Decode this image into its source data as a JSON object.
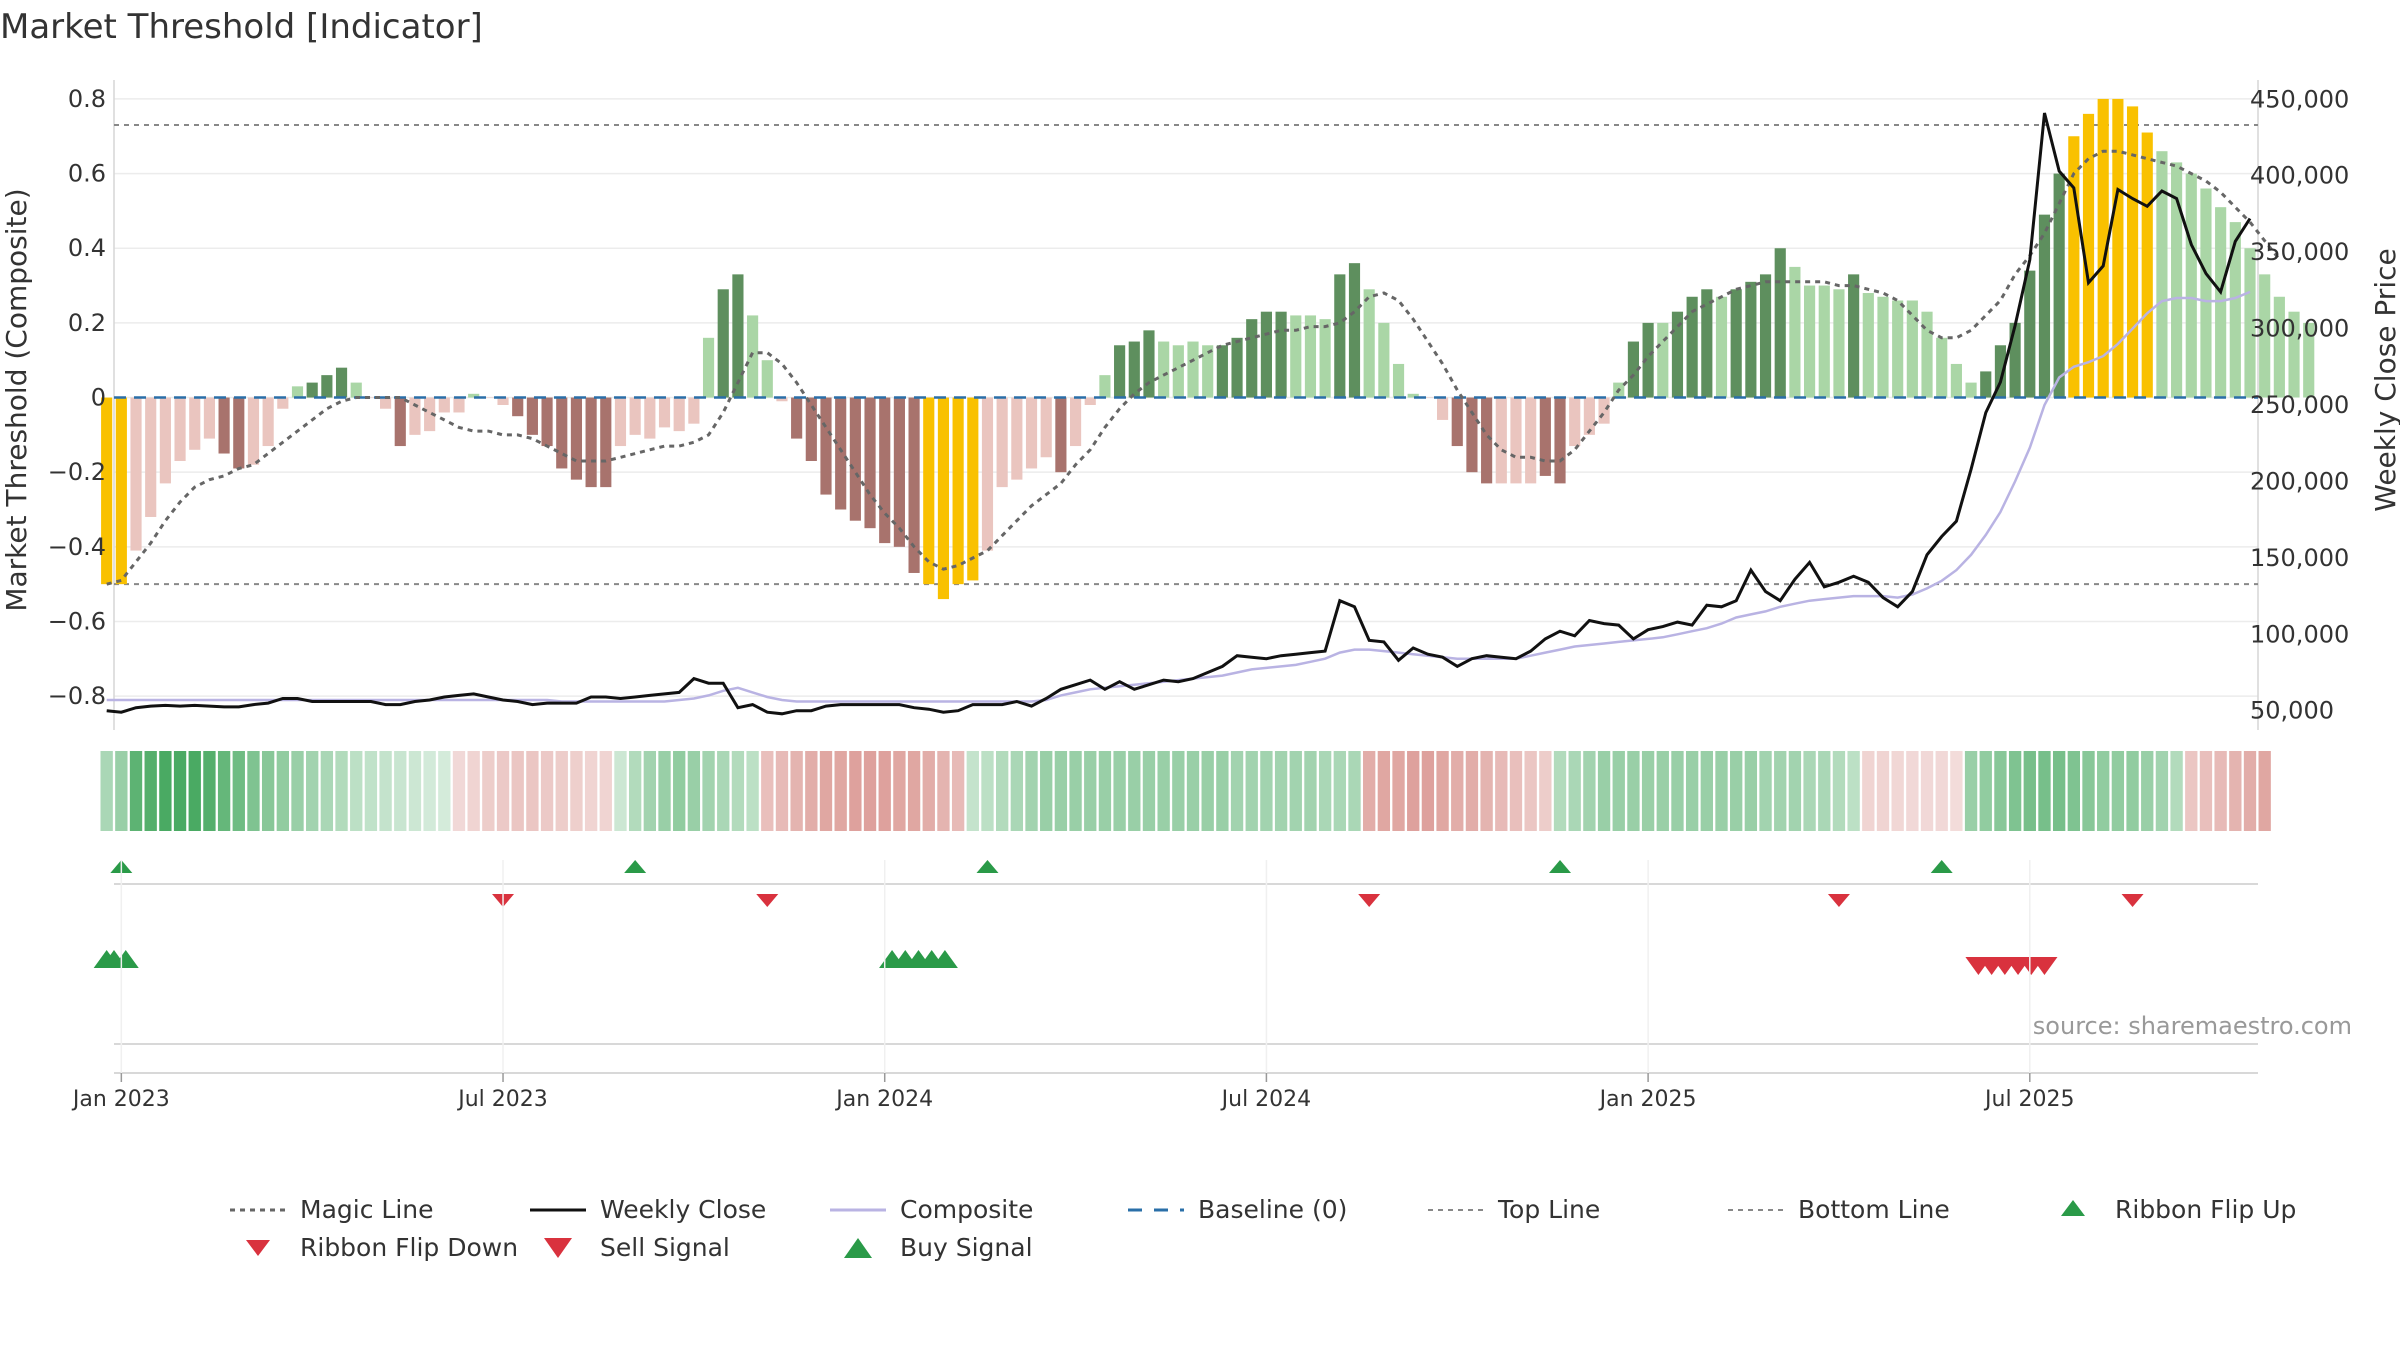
{
  "title": "Market Threshold [Indicator]",
  "source_text": "source: sharemaestro.com",
  "colors": {
    "bull_dark": "#5e8f5e",
    "bull_light": "#aad6a6",
    "bear_dark": "#a8736d",
    "bear_light": "#eac5bf",
    "extreme": "#f9c100",
    "magic_line": "#666666",
    "weekly_close": "#111111",
    "composite": "#b9b3e3",
    "baseline": "#2a6fa8",
    "ref_line": "#888888",
    "buy": "#2a9a48",
    "sell": "#d9323e"
  },
  "chart_data": {
    "type": "bar",
    "title": "Market Threshold [Indicator]",
    "xlabel": "",
    "ylabel": "Market Threshold (Composite)",
    "y2label": "Weekly Close Price",
    "ylim": [
      -0.88,
      0.84
    ],
    "y2lim": [
      40000,
      460000
    ],
    "y_ticks": [
      {
        "v": 0.8,
        "label": "0.8"
      },
      {
        "v": 0.6,
        "label": "0.6"
      },
      {
        "v": 0.4,
        "label": "0.4"
      },
      {
        "v": 0.2,
        "label": "0.2"
      },
      {
        "v": 0,
        "label": "0"
      },
      {
        "v": -0.2,
        "label": "−0.2"
      },
      {
        "v": -0.4,
        "label": "−0.4"
      },
      {
        "v": -0.6,
        "label": "−0.6"
      },
      {
        "v": -0.8,
        "label": "−0.8"
      }
    ],
    "y2_ticks": [
      {
        "v": 450000,
        "label": "450,000"
      },
      {
        "v": 400000,
        "label": "400,000"
      },
      {
        "v": 350000,
        "label": "350,000"
      },
      {
        "v": 300000,
        "label": "300,000"
      },
      {
        "v": 250000,
        "label": "250,000"
      },
      {
        "v": 200000,
        "label": "200,000"
      },
      {
        "v": 150000,
        "label": "150,000"
      },
      {
        "v": 100000,
        "label": "100,000"
      },
      {
        "v": 50000,
        "label": "50,000"
      }
    ],
    "x_ticks": [
      {
        "w": 1,
        "label": "Jan 2023"
      },
      {
        "w": 27,
        "label": "Jul 2023"
      },
      {
        "w": 53,
        "label": "Jan 2024"
      },
      {
        "w": 79,
        "label": "Jul 2024"
      },
      {
        "w": 105,
        "label": "Jan 2025"
      },
      {
        "w": 131,
        "label": "Jul 2025"
      }
    ],
    "top_line": 0.73,
    "bottom_line": -0.5,
    "baseline": 0,
    "composite_bars": [
      -0.5,
      -0.5,
      -0.41,
      -0.32,
      -0.23,
      -0.17,
      -0.14,
      -0.11,
      -0.15,
      -0.19,
      -0.18,
      -0.13,
      -0.03,
      0.03,
      0.04,
      0.06,
      0.08,
      0.04,
      0,
      -0.03,
      -0.13,
      -0.1,
      -0.09,
      -0.04,
      -0.04,
      0.01,
      0,
      -0.02,
      -0.05,
      -0.1,
      -0.13,
      -0.19,
      -0.22,
      -0.24,
      -0.24,
      -0.13,
      -0.1,
      -0.11,
      -0.08,
      -0.09,
      -0.07,
      0.16,
      0.29,
      0.33,
      0.22,
      0.1,
      -0.01,
      -0.11,
      -0.17,
      -0.26,
      -0.3,
      -0.33,
      -0.35,
      -0.39,
      -0.4,
      -0.47,
      -0.5,
      -0.54,
      -0.5,
      -0.49,
      -0.41,
      -0.24,
      -0.22,
      -0.19,
      -0.16,
      -0.2,
      -0.13,
      -0.02,
      0.06,
      0.14,
      0.15,
      0.18,
      0.15,
      0.14,
      0.15,
      0.14,
      0.14,
      0.16,
      0.21,
      0.23,
      0.23,
      0.22,
      0.22,
      0.21,
      0.33,
      0.36,
      0.29,
      0.2,
      0.09,
      0.01,
      0,
      -0.06,
      -0.13,
      -0.2,
      -0.23,
      -0.23,
      -0.23,
      -0.23,
      -0.21,
      -0.23,
      -0.13,
      -0.1,
      -0.07,
      0.04,
      0.15,
      0.2,
      0.2,
      0.23,
      0.27,
      0.29,
      0.27,
      0.29,
      0.31,
      0.33,
      0.4,
      0.35,
      0.3,
      0.3,
      0.29,
      0.33,
      0.28,
      0.27,
      0.26,
      0.26,
      0.23,
      0.16,
      0.09,
      0.04,
      0.07,
      0.14,
      0.2,
      0.34,
      0.49,
      0.6,
      0.7,
      0.76,
      0.8,
      0.8,
      0.78,
      0.71,
      0.66,
      0.63,
      0.6,
      0.56,
      0.51,
      0.47,
      0.4,
      0.33,
      0.27,
      0.23,
      0.2
    ],
    "bar_colors": [
      "yellow",
      "yellow",
      "lightred",
      "lightred",
      "lightred",
      "lightred",
      "lightred",
      "lightred",
      "darkred",
      "darkred",
      "lightred",
      "lightred",
      "lightred",
      "lightgreen",
      "darkgreen",
      "darkgreen",
      "darkgreen",
      "lightgreen",
      "lightred",
      "lightred",
      "darkred",
      "lightred",
      "lightred",
      "lightred",
      "lightred",
      "lightgreen",
      "lightred",
      "lightred",
      "darkred",
      "darkred",
      "darkred",
      "darkred",
      "darkred",
      "darkred",
      "darkred",
      "lightred",
      "lightred",
      "lightred",
      "lightred",
      "lightred",
      "lightred",
      "lightgreen",
      "darkgreen",
      "darkgreen",
      "lightgreen",
      "lightgreen",
      "lightred",
      "darkred",
      "darkred",
      "darkred",
      "darkred",
      "darkred",
      "darkred",
      "darkred",
      "darkred",
      "darkred",
      "yellow",
      "yellow",
      "yellow",
      "yellow",
      "lightred",
      "lightred",
      "lightred",
      "lightred",
      "lightred",
      "darkred",
      "lightred",
      "lightred",
      "lightgreen",
      "darkgreen",
      "darkgreen",
      "darkgreen",
      "lightgreen",
      "lightgreen",
      "lightgreen",
      "lightgreen",
      "darkgreen",
      "darkgreen",
      "darkgreen",
      "darkgreen",
      "darkgreen",
      "lightgreen",
      "lightgreen",
      "lightgreen",
      "darkgreen",
      "darkgreen",
      "lightgreen",
      "lightgreen",
      "lightgreen",
      "lightgreen",
      "lightred",
      "lightred",
      "darkred",
      "darkred",
      "darkred",
      "lightred",
      "lightred",
      "lightred",
      "darkred",
      "darkred",
      "lightred",
      "lightred",
      "lightred",
      "lightgreen",
      "darkgreen",
      "darkgreen",
      "lightgreen",
      "darkgreen",
      "darkgreen",
      "darkgreen",
      "lightgreen",
      "darkgreen",
      "darkgreen",
      "darkgreen",
      "darkgreen",
      "lightgreen",
      "lightgreen",
      "lightgreen",
      "lightgreen",
      "darkgreen",
      "lightgreen",
      "lightgreen",
      "lightgreen",
      "lightgreen",
      "lightgreen",
      "lightgreen",
      "lightgreen",
      "lightgreen",
      "darkgreen",
      "darkgreen",
      "darkgreen",
      "darkgreen",
      "darkgreen",
      "darkgreen",
      "yellow",
      "yellow",
      "yellow",
      "yellow",
      "yellow",
      "yellow",
      "lightgreen",
      "lightgreen",
      "lightgreen",
      "lightgreen",
      "lightgreen",
      "lightgreen",
      "lightgreen",
      "lightgreen",
      "lightgreen",
      "lightgreen",
      "lightgreen"
    ],
    "magic_line": [
      -0.5,
      -0.49,
      -0.44,
      -0.39,
      -0.33,
      -0.28,
      -0.24,
      -0.22,
      -0.21,
      -0.19,
      -0.18,
      -0.15,
      -0.12,
      -0.09,
      -0.06,
      -0.03,
      -0.01,
      0,
      0,
      0,
      0,
      -0.02,
      -0.04,
      -0.06,
      -0.08,
      -0.09,
      -0.09,
      -0.1,
      -0.1,
      -0.11,
      -0.13,
      -0.15,
      -0.17,
      -0.17,
      -0.17,
      -0.16,
      -0.15,
      -0.14,
      -0.13,
      -0.13,
      -0.12,
      -0.1,
      -0.04,
      0.04,
      0.12,
      0.12,
      0.09,
      0.04,
      -0.02,
      -0.08,
      -0.14,
      -0.2,
      -0.26,
      -0.31,
      -0.35,
      -0.4,
      -0.44,
      -0.46,
      -0.45,
      -0.43,
      -0.41,
      -0.37,
      -0.33,
      -0.29,
      -0.26,
      -0.23,
      -0.18,
      -0.14,
      -0.08,
      -0.03,
      0.01,
      0.04,
      0.06,
      0.08,
      0.1,
      0.12,
      0.14,
      0.15,
      0.16,
      0.17,
      0.18,
      0.18,
      0.19,
      0.19,
      0.2,
      0.23,
      0.27,
      0.28,
      0.26,
      0.21,
      0.15,
      0.09,
      0.02,
      -0.04,
      -0.1,
      -0.14,
      -0.16,
      -0.16,
      -0.17,
      -0.17,
      -0.14,
      -0.09,
      -0.04,
      0.02,
      0.06,
      0.11,
      0.15,
      0.19,
      0.23,
      0.25,
      0.27,
      0.29,
      0.3,
      0.31,
      0.31,
      0.31,
      0.31,
      0.31,
      0.3,
      0.3,
      0.29,
      0.28,
      0.26,
      0.22,
      0.18,
      0.16,
      0.16,
      0.18,
      0.22,
      0.26,
      0.33,
      0.38,
      0.44,
      0.52,
      0.6,
      0.64,
      0.66,
      0.66,
      0.65,
      0.64,
      0.63,
      0.62,
      0.6,
      0.58,
      0.55,
      0.51,
      0.47,
      0.42,
      0.37
    ],
    "weekly_close": [
      50000,
      49000,
      52000,
      53000,
      53500,
      53000,
      53500,
      53000,
      52500,
      52500,
      54000,
      55000,
      58000,
      58000,
      56000,
      56000,
      56000,
      56000,
      56000,
      54000,
      54000,
      56000,
      57000,
      59000,
      60000,
      61000,
      59000,
      57000,
      56000,
      54000,
      55000,
      55000,
      55000,
      59000,
      59000,
      58000,
      59000,
      60000,
      61000,
      62000,
      71000,
      68000,
      68000,
      52000,
      54000,
      49000,
      48000,
      50000,
      50000,
      53000,
      54000,
      54000,
      54000,
      54000,
      54000,
      52000,
      51000,
      49000,
      50000,
      54000,
      54000,
      54000,
      56000,
      53000,
      58000,
      64000,
      67000,
      70000,
      64000,
      69000,
      64000,
      67000,
      70000,
      69000,
      71000,
      75000,
      79000,
      86000,
      85000,
      84000,
      86000,
      87000,
      88000,
      89000,
      122000,
      118000,
      96000,
      95000,
      83000,
      91000,
      87000,
      85000,
      79000,
      84000,
      86000,
      85000,
      84000,
      89000,
      97000,
      102000,
      99000,
      109000,
      107000,
      106000,
      97000,
      103000,
      105000,
      108000,
      106000,
      119000,
      118000,
      122000,
      142000,
      128000,
      122000,
      136000,
      147000,
      131000,
      134000,
      138000,
      134000,
      124000,
      118000,
      128000,
      152000,
      164000,
      174000,
      208000,
      245000,
      265000,
      302000,
      345000,
      441000,
      403000,
      392000,
      330000,
      341000,
      391000,
      385000,
      380000,
      390000,
      385000,
      355000,
      336000,
      324000,
      357000,
      372000
    ],
    "composite_line": [
      57000,
      57000,
      57000,
      57000,
      57000,
      57000,
      57000,
      57000,
      57000,
      57000,
      57000,
      57000,
      57000,
      57000,
      57000,
      57000,
      57000,
      57000,
      57000,
      57000,
      57000,
      57000,
      57000,
      57000,
      57000,
      57000,
      57000,
      57000,
      57000,
      57000,
      57000,
      56000,
      56000,
      56000,
      56000,
      56000,
      56000,
      56000,
      56000,
      57000,
      58000,
      60000,
      63000,
      65000,
      62000,
      59000,
      57000,
      56000,
      56000,
      56000,
      56000,
      56000,
      56000,
      56000,
      56000,
      56000,
      56000,
      56000,
      56000,
      56000,
      56000,
      56000,
      56000,
      56000,
      57000,
      60000,
      62000,
      64000,
      65000,
      66000,
      67000,
      68000,
      69000,
      70000,
      71000,
      72000,
      73000,
      75000,
      77000,
      78000,
      79000,
      80000,
      82000,
      84000,
      88000,
      90000,
      90000,
      89000,
      88000,
      87000,
      86000,
      85000,
      84000,
      84000,
      84000,
      84000,
      84000,
      86000,
      88000,
      90000,
      92000,
      93000,
      94000,
      95000,
      96000,
      97000,
      98000,
      100000,
      102000,
      104000,
      107000,
      111000,
      113000,
      115000,
      118000,
      120000,
      122000,
      123000,
      124000,
      125000,
      125000,
      125000,
      124000,
      126000,
      130000,
      135000,
      142000,
      152000,
      165000,
      180000,
      200000,
      222000,
      250000,
      268000,
      275000,
      278000,
      282000,
      290000,
      300000,
      310000,
      318000,
      320000,
      320000,
      318000,
      318000,
      320000,
      324000
    ],
    "ribbon_row": [
      0.35,
      0.45,
      0.8,
      0.85,
      0.9,
      0.9,
      0.9,
      0.85,
      0.75,
      0.7,
      0.6,
      0.55,
      0.5,
      0.45,
      0.4,
      0.35,
      0.3,
      0.25,
      0.22,
      0.2,
      0.18,
      0.15,
      0.12,
      0.1,
      -0.1,
      -0.15,
      -0.2,
      -0.22,
      -0.25,
      -0.25,
      -0.22,
      -0.2,
      -0.18,
      -0.15,
      -0.15,
      0.15,
      0.3,
      0.4,
      0.45,
      0.5,
      0.45,
      0.4,
      0.35,
      0.3,
      0.25,
      -0.3,
      -0.35,
      -0.4,
      -0.45,
      -0.5,
      -0.5,
      -0.55,
      -0.55,
      -0.55,
      -0.5,
      -0.5,
      -0.45,
      -0.4,
      -0.35,
      0.2,
      0.25,
      0.3,
      0.35,
      0.4,
      0.45,
      0.45,
      0.45,
      0.45,
      0.45,
      0.45,
      0.45,
      0.45,
      0.45,
      0.45,
      0.45,
      0.45,
      0.45,
      0.4,
      0.4,
      0.4,
      0.4,
      0.4,
      0.4,
      0.35,
      0.35,
      0.35,
      -0.45,
      -0.5,
      -0.5,
      -0.55,
      -0.55,
      -0.5,
      -0.45,
      -0.45,
      -0.4,
      -0.35,
      -0.3,
      -0.25,
      -0.2,
      0.3,
      0.35,
      0.4,
      0.45,
      0.45,
      0.45,
      0.45,
      0.45,
      0.45,
      0.45,
      0.45,
      0.45,
      0.45,
      0.45,
      0.4,
      0.4,
      0.4,
      0.35,
      0.35,
      0.3,
      0.25,
      -0.15,
      -0.15,
      -0.12,
      -0.1,
      -0.1,
      -0.1,
      -0.08,
      0.45,
      0.5,
      0.55,
      0.6,
      0.65,
      0.65,
      0.65,
      0.6,
      0.55,
      0.5,
      0.5,
      0.5,
      0.45,
      0.4,
      0.3,
      -0.25,
      -0.3,
      -0.35,
      -0.4,
      -0.45,
      -0.5
    ],
    "ribbon_flip_up": [
      1,
      36,
      60,
      99,
      125
    ],
    "ribbon_flip_down": [
      27,
      45,
      86,
      118,
      138
    ],
    "buy_signals": [
      0,
      0.5,
      1.3,
      53.5,
      54.4,
      55.3,
      56.2,
      57.1
    ],
    "sell_signals": [
      127.5,
      128.4,
      129.3,
      130.2,
      131.1,
      132
    ]
  },
  "legend": {
    "items": [
      {
        "key": "magic",
        "label": "Magic Line"
      },
      {
        "key": "close",
        "label": "Weekly Close"
      },
      {
        "key": "composite",
        "label": "Composite"
      },
      {
        "key": "baseline",
        "label": "Baseline (0)"
      },
      {
        "key": "top",
        "label": "Top Line"
      },
      {
        "key": "bottom",
        "label": "Bottom Line"
      },
      {
        "key": "flipup",
        "label": "Ribbon Flip Up"
      },
      {
        "key": "flipdown",
        "label": "Ribbon Flip Down"
      },
      {
        "key": "sell",
        "label": "Sell Signal"
      },
      {
        "key": "buy",
        "label": "Buy Signal"
      }
    ]
  }
}
